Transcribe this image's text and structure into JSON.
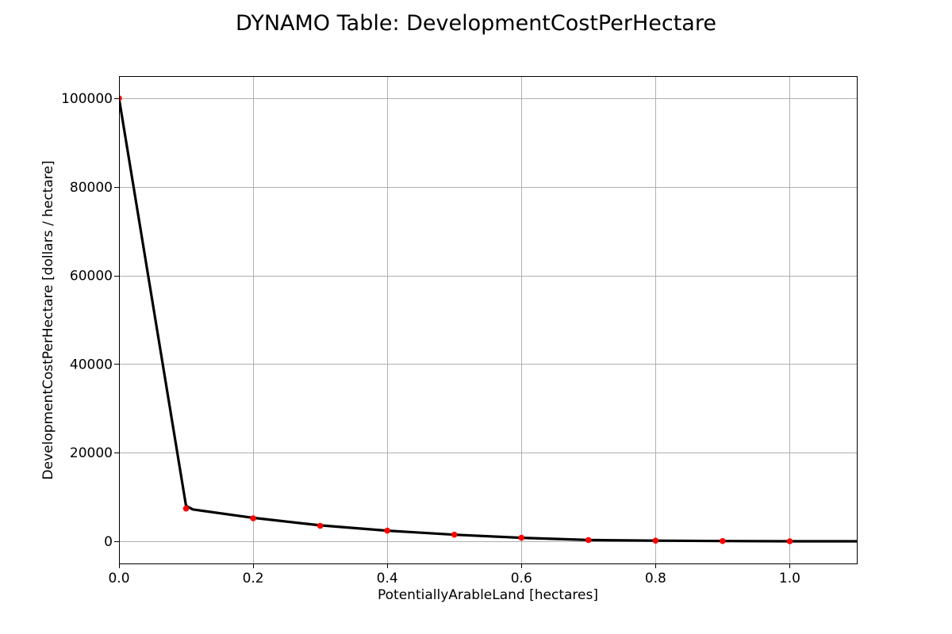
{
  "chart_data": {
    "type": "line",
    "title": "DYNAMO Table: DevelopmentCostPerHectare",
    "xlabel": "PotentiallyArableLand [hectares]",
    "ylabel": "DevelopmentCostPerHectare [dollars / hectare]",
    "xlim": [
      0,
      1.1
    ],
    "ylim": [
      -5000,
      105000
    ],
    "xticks": [
      0.0,
      0.2,
      0.4,
      0.6,
      0.8,
      1.0
    ],
    "xtick_labels": [
      "0.0",
      "0.2",
      "0.4",
      "0.6",
      "0.8",
      "1.0"
    ],
    "yticks": [
      0,
      20000,
      40000,
      60000,
      80000,
      100000
    ],
    "ytick_labels": [
      "0",
      "20000",
      "40000",
      "60000",
      "80000",
      "100000"
    ],
    "grid": true,
    "series": [
      {
        "kind": "line",
        "color": "#000000",
        "x": [
          0.0,
          0.1,
          0.11,
          0.2,
          0.3,
          0.4,
          0.5,
          0.6,
          0.7,
          0.8,
          0.9,
          1.0,
          1.1
        ],
        "y": [
          100000,
          8000,
          7200,
          5300,
          3600,
          2400,
          1500,
          800,
          300,
          150,
          70,
          0,
          0
        ]
      },
      {
        "kind": "scatter",
        "color": "#ff0000",
        "x": [
          0.0,
          0.1,
          0.2,
          0.3,
          0.4,
          0.5,
          0.6,
          0.7,
          0.8,
          0.9,
          1.0
        ],
        "y": [
          100000,
          7400,
          5200,
          3500,
          2400,
          1500,
          800,
          300,
          150,
          70,
          0
        ]
      }
    ]
  }
}
